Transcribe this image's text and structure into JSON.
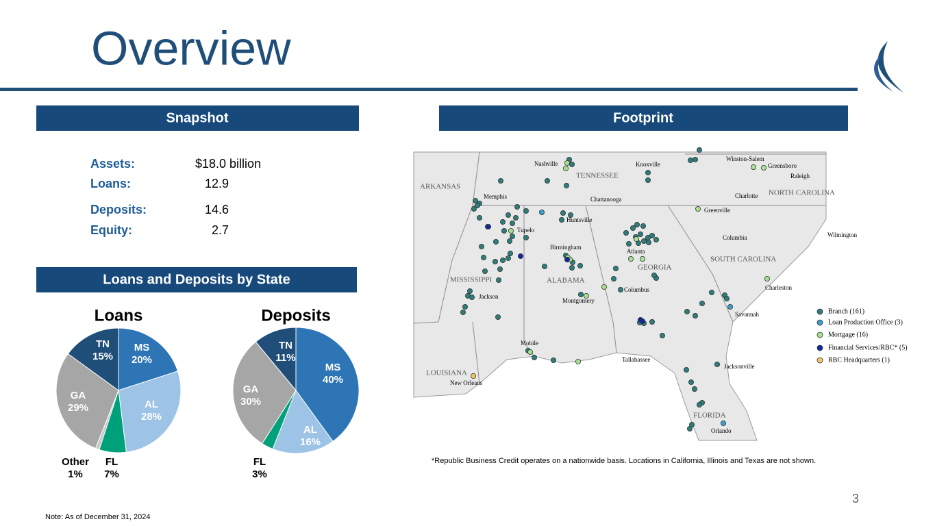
{
  "title": "Overview",
  "page_number": "3",
  "snapshot": {
    "header": "Snapshot",
    "rows": [
      {
        "label": "Assets:",
        "value": "$18.0 billion"
      },
      {
        "label": "Loans:",
        "value": "12.9"
      },
      {
        "label": "Deposits:",
        "value": "14.6"
      },
      {
        "label": "Equity:",
        "value": "2.7"
      }
    ]
  },
  "loans_deposits": {
    "header": "Loans and Deposits by State"
  },
  "chart_data": [
    {
      "type": "pie",
      "title": "Loans",
      "categories": [
        "MS",
        "AL",
        "FL",
        "Other",
        "GA",
        "TN"
      ],
      "values": [
        20,
        28,
        7,
        1,
        29,
        15
      ],
      "value_labels": [
        "20%",
        "28%",
        "7%",
        "1%",
        "29%",
        "15%"
      ],
      "colors": [
        "#2e75b6",
        "#9dc3e6",
        "#00a07a",
        "#c9c9c9",
        "#a6a6a6",
        "#1f4e79"
      ]
    },
    {
      "type": "pie",
      "title": "Deposits",
      "categories": [
        "MS",
        "AL",
        "FL",
        "GA",
        "TN"
      ],
      "values": [
        40,
        16,
        3,
        30,
        11
      ],
      "value_labels": [
        "40%",
        "16%",
        "3%",
        "30%",
        "11%"
      ],
      "colors": [
        "#2e75b6",
        "#9dc3e6",
        "#00a07a",
        "#a6a6a6",
        "#1f4e79"
      ]
    }
  ],
  "footprint": {
    "header": "Footprint",
    "states": [
      "ARKANSAS",
      "TENNESSEE",
      "NORTH CAROLINA",
      "MISSISSIPPI",
      "ALABAMA",
      "GEORGIA",
      "SOUTH CAROLINA",
      "LOUISIANA",
      "FLORIDA"
    ],
    "cities": [
      "Nashville",
      "Knoxville",
      "Winston-Salem",
      "Greensboro",
      "Raleigh",
      "Memphis",
      "Chattanooga",
      "Charlotte",
      "Greenville",
      "Huntsville",
      "Tupelo",
      "Columbia",
      "Wilmington",
      "Birmingham",
      "Atlanta",
      "Columbus",
      "Charleston",
      "Jackson",
      "Montgomery",
      "Savannah",
      "Mobile",
      "Tallahassee",
      "Jacksonville",
      "New Orleans",
      "Orlando"
    ],
    "legend": [
      {
        "label": "Branch (161)",
        "color": "#2e7d7a"
      },
      {
        "label": "Loan Production Office (3)",
        "color": "#3aa0d0"
      },
      {
        "label": "Mortgage (16)",
        "color": "#a6e28f"
      },
      {
        "label": "Financial Services/RBC* (5)",
        "color": "#102a9c"
      },
      {
        "label": "RBC Headquarters (1)",
        "color": "#f5c46a"
      }
    ],
    "footnote": "*Republic Business Credit operates on a nationwide basis. Locations in California, Illinois and Texas are not shown."
  },
  "note": "Note: As of December 31, 2024"
}
